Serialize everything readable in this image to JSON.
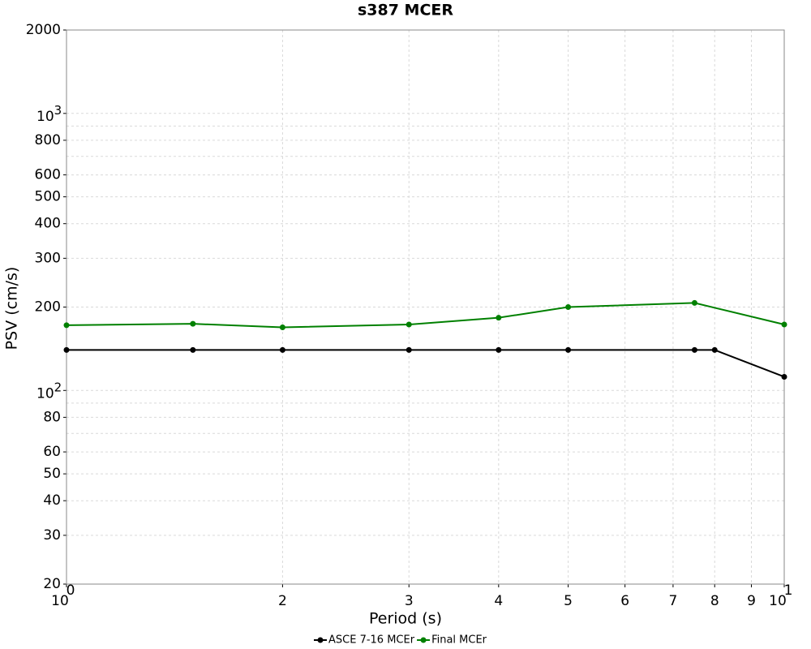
{
  "chart_data": {
    "type": "line",
    "title": "s387 MCER",
    "x_label": "Period (s)",
    "y_label": "PSV (cm/s)",
    "xscale": "log",
    "yscale": "log",
    "grid": true,
    "legend": "bottom",
    "xlim": [
      1,
      10
    ],
    "ylim": [
      20,
      2000
    ],
    "xticks": [
      {
        "value": 1,
        "label": "10",
        "exponent": "0"
      },
      2,
      3,
      4,
      5,
      6,
      7,
      8,
      9,
      {
        "value": 10,
        "label": "10",
        "exponent": "1"
      }
    ],
    "yticks": [
      20,
      30,
      40,
      50,
      60,
      80,
      {
        "value": 100,
        "label": "10",
        "exponent": "2"
      },
      200,
      300,
      400,
      500,
      600,
      800,
      {
        "value": 1000,
        "label": "10",
        "exponent": "3"
      },
      2000
    ],
    "yticks_minor": [
      70,
      90,
      700,
      900
    ],
    "series": [
      {
        "name": "ASCE 7-16 MCEr",
        "color": "#000000",
        "x": [
          1,
          1.5,
          2,
          3,
          4,
          5,
          7.5,
          8,
          10
        ],
        "values": [
          140,
          140,
          140,
          140,
          140,
          140,
          140,
          140,
          112
        ]
      },
      {
        "name": "Final MCEr",
        "color": "#008000",
        "x": [
          1,
          1.5,
          2,
          3,
          4,
          5,
          7.5,
          10
        ],
        "values": [
          172,
          174,
          169,
          173,
          183,
          200,
          207,
          173
        ]
      }
    ]
  }
}
